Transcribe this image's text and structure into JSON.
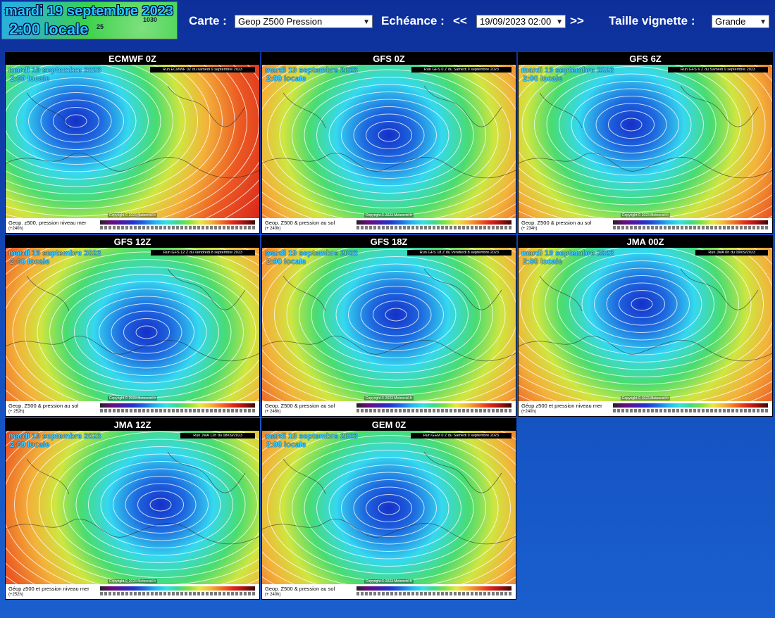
{
  "logo": {
    "line1": "mardi 19 septembre 2023",
    "line2": "2:00 locale",
    "iso_a": "1030",
    "iso_b": "25",
    "iso_c": "10"
  },
  "controls": {
    "carte_label": "Carte :",
    "carte_value": "Geop Z500 Pression",
    "echeance_label": "Echéance :",
    "prev": "<<",
    "echeance_value": "19/09/2023 02:00",
    "next": ">>",
    "taille_label": "Taille vignette :",
    "taille_value": "Grande"
  },
  "colors": {
    "accent": "#0d2f9a",
    "tile_header": "#000000"
  },
  "tiles": [
    {
      "title": "ECMWF 0Z",
      "ovl1": "mardi 19 septembre 2023",
      "ovl2": "2:00 locale",
      "run": "Run ECMWF 0Z du samedi 9 septembre 2023",
      "copy": "Copyright © 2023 Meteociel.fr",
      "cap": "Geop. z500, pression niveau mer",
      "cap2": "(+240h)"
    },
    {
      "title": "GFS 0Z",
      "ovl1": "mardi 19 septembre 2023",
      "ovl2": "2:00 locale",
      "run": "Run GFS 0 Z du Samedi 9 septembre 2023",
      "copy": "Copyright © 2023 Meteociel.fr",
      "cap": "Geop. Z500 & pression au sol",
      "cap2": "(+ 240h)"
    },
    {
      "title": "GFS 6Z",
      "ovl1": "mardi 19 septembre 2023",
      "ovl2": "2:00 locale",
      "run": "Run GFS 6 Z du Samedi 9 septembre 2023",
      "copy": "Copyright © 2023 Meteociel.fr",
      "cap": "Geop. Z500 & pression au sol",
      "cap2": "(+ 234h)"
    },
    {
      "title": "GFS 12Z",
      "ovl1": "mardi 19 septembre 2023",
      "ovl2": "2:00 locale",
      "run": "Run GFS 12 Z du Vendredi 8 septembre 2023",
      "copy": "Copyright © 2023 Meteociel.fr",
      "cap": "Geop. Z500 & pression au sol",
      "cap2": "(+ 252h)"
    },
    {
      "title": "GFS 18Z",
      "ovl1": "mardi 19 septembre 2023",
      "ovl2": "2:00 locale",
      "run": "Run GFS 18 Z du Vendredi 8 septembre 2023",
      "copy": "Copyright © 2023 Meteociel.fr",
      "cap": "Geop. Z500 & pression au sol",
      "cap2": "(+ 246h)"
    },
    {
      "title": "JMA 00Z",
      "ovl1": "mardi 19 septembre 2023",
      "ovl2": "2:00 locale",
      "run": "Run JMA 0h du 09/09/2023",
      "copy": "Copyright © 2023 Meteociel.fr",
      "cap": "Géop z500 et pression niveau mer",
      "cap2": "(+240h)"
    },
    {
      "title": "JMA 12Z",
      "ovl1": "mardi 19 septembre 2023",
      "ovl2": "2:00 locale",
      "run": "Run JMA 12h du 08/09/2023",
      "copy": "Copyright © 2023 Meteociel.fr",
      "cap": "Géop z500 et pression niveau mer",
      "cap2": "(+252h)"
    },
    {
      "title": "GEM 0Z",
      "ovl1": "mardi 19 septembre 2023",
      "ovl2": "2:00 locale",
      "run": "Run GEM 0 Z du Samedi 9 septembre 2023",
      "copy": "Copyright © 2023 Meteociel.fr",
      "cap": "Geop. Z500 & pression au sol",
      "cap2": "(+ 240h)"
    }
  ]
}
